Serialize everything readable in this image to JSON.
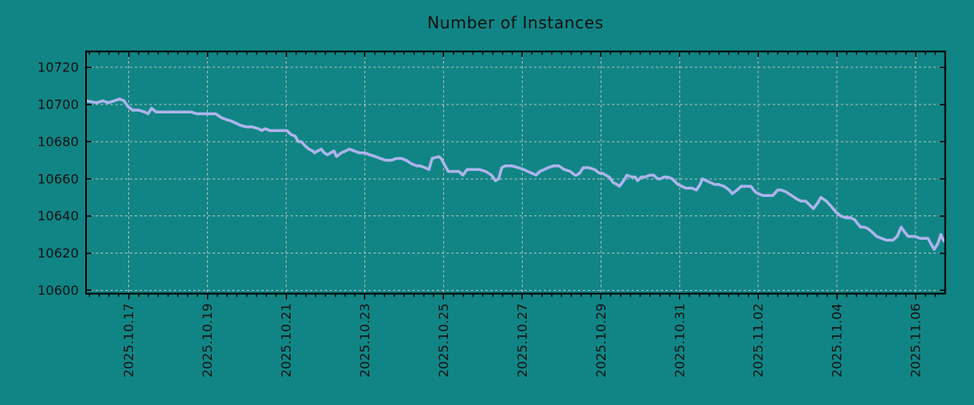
{
  "title": "Number of Instances",
  "colors": {
    "background": "#118585",
    "line": "#adb4ec",
    "grid": "#bfbfbf",
    "axis": "#000000",
    "text": "#111111"
  },
  "chart_data": {
    "type": "line",
    "title": "Number of Instances",
    "legend": "none",
    "grid": "dashed",
    "x_axis": {
      "unit": "date",
      "epoch_day0": "2025.10.16",
      "tick_labels": [
        "2025.10.17",
        "2025.10.19",
        "2025.10.21",
        "2025.10.23",
        "2025.10.25",
        "2025.10.27",
        "2025.10.29",
        "2025.10.31",
        "2025.11.02",
        "2025.11.04",
        "2025.11.06"
      ],
      "tick_day_offsets": [
        1,
        3,
        5,
        7,
        9,
        11,
        13,
        15,
        17,
        19,
        21
      ],
      "minor_tick_interval_days": 0.25,
      "xlim_days": [
        -0.085,
        21.75
      ]
    },
    "y_axis": {
      "tick_labels": [
        "10600",
        "10620",
        "10640",
        "10660",
        "10680",
        "10700",
        "10720"
      ],
      "ticks": [
        10600,
        10620,
        10640,
        10660,
        10680,
        10700,
        10720
      ],
      "ylim": [
        10598.2,
        10728.6
      ]
    },
    "series": [
      {
        "name": "instances",
        "points": [
          [
            -0.085,
            10702
          ],
          [
            0.18,
            10701
          ],
          [
            0.34,
            10702
          ],
          [
            0.48,
            10701
          ],
          [
            0.63,
            10702
          ],
          [
            0.77,
            10703
          ],
          [
            0.88,
            10702
          ],
          [
            0.98,
            10699
          ],
          [
            1.1,
            10697
          ],
          [
            1.25,
            10697
          ],
          [
            1.41,
            10696
          ],
          [
            1.49,
            10695
          ],
          [
            1.58,
            10698
          ],
          [
            1.7,
            10696
          ],
          [
            1.82,
            10696
          ],
          [
            1.97,
            10696
          ],
          [
            2.11,
            10696
          ],
          [
            2.28,
            10696
          ],
          [
            2.44,
            10696
          ],
          [
            2.59,
            10696
          ],
          [
            2.73,
            10695
          ],
          [
            2.9,
            10695
          ],
          [
            3.0,
            10695
          ],
          [
            3.14,
            10695
          ],
          [
            3.21,
            10695
          ],
          [
            3.35,
            10693
          ],
          [
            3.47,
            10692
          ],
          [
            3.62,
            10691
          ],
          [
            3.72,
            10690
          ],
          [
            3.82,
            10689
          ],
          [
            3.97,
            10688
          ],
          [
            4.13,
            10688
          ],
          [
            4.3,
            10687
          ],
          [
            4.38,
            10686
          ],
          [
            4.46,
            10687
          ],
          [
            4.59,
            10686
          ],
          [
            4.75,
            10686
          ],
          [
            4.92,
            10686
          ],
          [
            5.02,
            10686
          ],
          [
            5.12,
            10684
          ],
          [
            5.23,
            10683
          ],
          [
            5.31,
            10680
          ],
          [
            5.39,
            10680
          ],
          [
            5.47,
            10678
          ],
          [
            5.58,
            10676
          ],
          [
            5.68,
            10675
          ],
          [
            5.72,
            10674
          ],
          [
            5.8,
            10675
          ],
          [
            5.89,
            10676
          ],
          [
            5.97,
            10674
          ],
          [
            6.05,
            10673
          ],
          [
            6.13,
            10674
          ],
          [
            6.22,
            10675
          ],
          [
            6.28,
            10672
          ],
          [
            6.4,
            10674
          ],
          [
            6.51,
            10675
          ],
          [
            6.61,
            10676
          ],
          [
            6.73,
            10675
          ],
          [
            6.86,
            10674
          ],
          [
            7.0,
            10674
          ],
          [
            7.12,
            10673
          ],
          [
            7.27,
            10672
          ],
          [
            7.39,
            10671
          ],
          [
            7.54,
            10670
          ],
          [
            7.68,
            10670
          ],
          [
            7.8,
            10671
          ],
          [
            7.93,
            10671
          ],
          [
            8.05,
            10670
          ],
          [
            8.2,
            10668
          ],
          [
            8.32,
            10667
          ],
          [
            8.4,
            10667
          ],
          [
            8.53,
            10666
          ],
          [
            8.63,
            10665
          ],
          [
            8.71,
            10671
          ],
          [
            8.88,
            10672
          ],
          [
            8.94,
            10671
          ],
          [
            9.04,
            10667
          ],
          [
            9.12,
            10664
          ],
          [
            9.25,
            10664
          ],
          [
            9.39,
            10664
          ],
          [
            9.49,
            10662
          ],
          [
            9.6,
            10665
          ],
          [
            9.7,
            10665
          ],
          [
            9.91,
            10665
          ],
          [
            10.07,
            10664
          ],
          [
            10.22,
            10662
          ],
          [
            10.32,
            10659
          ],
          [
            10.4,
            10660
          ],
          [
            10.48,
            10666
          ],
          [
            10.57,
            10667
          ],
          [
            10.73,
            10667
          ],
          [
            10.9,
            10666
          ],
          [
            11.04,
            10665
          ],
          [
            11.14,
            10664
          ],
          [
            11.25,
            10663
          ],
          [
            11.35,
            10662
          ],
          [
            11.45,
            10664
          ],
          [
            11.56,
            10665
          ],
          [
            11.66,
            10666
          ],
          [
            11.8,
            10667
          ],
          [
            11.93,
            10667
          ],
          [
            12.07,
            10665
          ],
          [
            12.22,
            10664
          ],
          [
            12.34,
            10662
          ],
          [
            12.38,
            10662
          ],
          [
            12.46,
            10663
          ],
          [
            12.55,
            10666
          ],
          [
            12.69,
            10666
          ],
          [
            12.84,
            10665
          ],
          [
            12.96,
            10663
          ],
          [
            13.04,
            10663
          ],
          [
            13.12,
            10662
          ],
          [
            13.21,
            10661
          ],
          [
            13.31,
            10658
          ],
          [
            13.41,
            10657
          ],
          [
            13.47,
            10656
          ],
          [
            13.58,
            10659
          ],
          [
            13.66,
            10662
          ],
          [
            13.78,
            10661
          ],
          [
            13.87,
            10661
          ],
          [
            13.93,
            10659
          ],
          [
            14.03,
            10661
          ],
          [
            14.13,
            10661
          ],
          [
            14.24,
            10662
          ],
          [
            14.34,
            10662
          ],
          [
            14.44,
            10660
          ],
          [
            14.51,
            10660
          ],
          [
            14.61,
            10661
          ],
          [
            14.69,
            10661
          ],
          [
            14.81,
            10660
          ],
          [
            14.96,
            10657
          ],
          [
            15.06,
            10656
          ],
          [
            15.16,
            10655
          ],
          [
            15.31,
            10655
          ],
          [
            15.43,
            10654
          ],
          [
            15.52,
            10657
          ],
          [
            15.58,
            10660
          ],
          [
            15.68,
            10659
          ],
          [
            15.78,
            10658
          ],
          [
            15.89,
            10657
          ],
          [
            15.99,
            10657
          ],
          [
            16.13,
            10656
          ],
          [
            16.26,
            10654
          ],
          [
            16.34,
            10652
          ],
          [
            16.46,
            10654
          ],
          [
            16.57,
            10656
          ],
          [
            16.71,
            10656
          ],
          [
            16.81,
            10656
          ],
          [
            16.92,
            10653
          ],
          [
            17.0,
            10652
          ],
          [
            17.12,
            10651
          ],
          [
            17.25,
            10651
          ],
          [
            17.37,
            10651
          ],
          [
            17.49,
            10654
          ],
          [
            17.58,
            10654
          ],
          [
            17.7,
            10653
          ],
          [
            17.85,
            10651
          ],
          [
            17.99,
            10649
          ],
          [
            18.09,
            10648
          ],
          [
            18.2,
            10648
          ],
          [
            18.3,
            10646
          ],
          [
            18.4,
            10644
          ],
          [
            18.51,
            10647
          ],
          [
            18.59,
            10650
          ],
          [
            18.73,
            10648
          ],
          [
            18.86,
            10645
          ],
          [
            18.98,
            10642
          ],
          [
            19.1,
            10640
          ],
          [
            19.23,
            10639
          ],
          [
            19.35,
            10639
          ],
          [
            19.45,
            10638
          ],
          [
            19.52,
            10636
          ],
          [
            19.6,
            10634
          ],
          [
            19.7,
            10634
          ],
          [
            19.8,
            10633
          ],
          [
            19.91,
            10631
          ],
          [
            20.01,
            10629
          ],
          [
            20.13,
            10628
          ],
          [
            20.26,
            10627
          ],
          [
            20.38,
            10627
          ],
          [
            20.42,
            10627
          ],
          [
            20.53,
            10629
          ],
          [
            20.63,
            10634
          ],
          [
            20.73,
            10631
          ],
          [
            20.81,
            10629
          ],
          [
            20.92,
            10629
          ],
          [
            21.0,
            10629
          ],
          [
            21.1,
            10628
          ],
          [
            21.21,
            10628
          ],
          [
            21.31,
            10628
          ],
          [
            21.39,
            10625
          ],
          [
            21.47,
            10622
          ],
          [
            21.56,
            10625
          ],
          [
            21.64,
            10630
          ],
          [
            21.68,
            10628
          ],
          [
            21.73,
            10626
          ]
        ]
      }
    ]
  }
}
